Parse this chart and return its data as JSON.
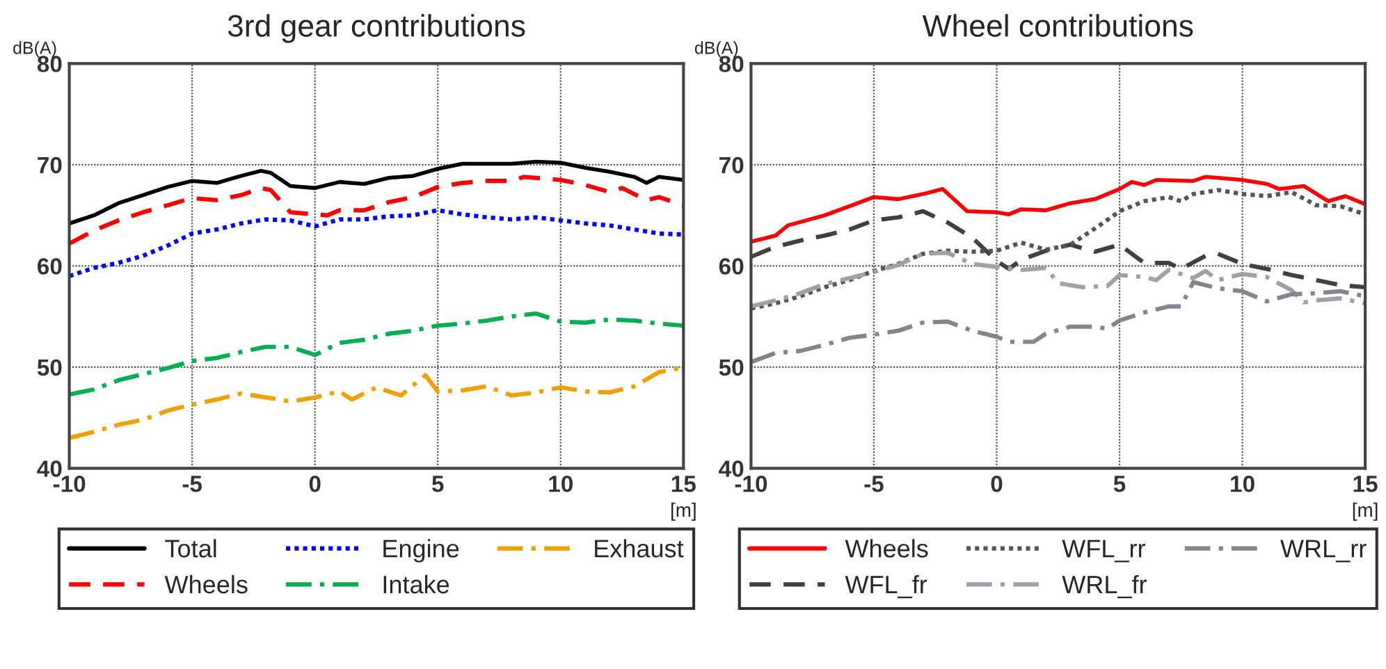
{
  "chart_data": [
    {
      "type": "line",
      "title": "3rd gear contributions",
      "ylabel": "dB(A)",
      "xlabel": "[m]",
      "xlim": [
        -10,
        15
      ],
      "xticks": [
        -10,
        -5,
        0,
        5,
        10,
        15
      ],
      "ylim": [
        40,
        80
      ],
      "yticks": [
        40,
        50,
        60,
        70,
        80
      ],
      "grid": true,
      "legend": "bottom",
      "marker": "none",
      "series": [
        {
          "name": "Total",
          "color": "#000000",
          "line_style": "solid",
          "x": [
            -10,
            -9,
            -8,
            -7,
            -6,
            -5,
            -4,
            -3,
            -2.2,
            -1.8,
            -1,
            0,
            1,
            2,
            3,
            4,
            5,
            6,
            7,
            8,
            9,
            10,
            11,
            12,
            13,
            13.5,
            14,
            15
          ],
          "values": [
            64.2,
            65,
            66.2,
            67,
            67.8,
            68.4,
            68.2,
            68.9,
            69.4,
            69.2,
            67.9,
            67.7,
            68.3,
            68.1,
            68.7,
            68.9,
            69.6,
            70.1,
            70.1,
            70.1,
            70.3,
            70.2,
            69.7,
            69.3,
            68.8,
            68.2,
            68.8,
            68.5
          ]
        },
        {
          "name": "Wheels",
          "color": "#ff0000",
          "line_style": "dashed",
          "x": [
            -10,
            -9,
            -8,
            -7,
            -6,
            -5,
            -4,
            -3,
            -2.2,
            -1.8,
            -1,
            0,
            0.5,
            1,
            2,
            3,
            4,
            5,
            6,
            7,
            8,
            8.5,
            10,
            11,
            12,
            12.5,
            13.5,
            14,
            15
          ],
          "values": [
            62.2,
            63.5,
            64.5,
            65.3,
            66,
            66.7,
            66.5,
            67,
            67.7,
            67.5,
            65.3,
            65.1,
            65,
            65.5,
            65.5,
            66.3,
            66.8,
            67.8,
            68.2,
            68.4,
            68.4,
            68.8,
            68.5,
            68,
            67.3,
            67.7,
            66.5,
            66.8,
            66
          ]
        },
        {
          "name": "Engine",
          "color": "#0000ff",
          "line_style": "dotted",
          "x": [
            -10,
            -9,
            -8,
            -7,
            -6,
            -5,
            -4,
            -3,
            -2,
            -1,
            0,
            1,
            2,
            3,
            4,
            5,
            6,
            7,
            8,
            9,
            10,
            11,
            12,
            13,
            14,
            15
          ],
          "values": [
            59,
            59.8,
            60.3,
            61,
            62,
            63.2,
            63.6,
            64.2,
            64.6,
            64.5,
            63.9,
            64.6,
            64.6,
            64.9,
            65,
            65.5,
            65.1,
            64.8,
            64.6,
            64.8,
            64.5,
            64.2,
            64,
            63.6,
            63.2,
            63.1
          ]
        },
        {
          "name": "Intake",
          "color": "#00b050",
          "line_style": "dashdot",
          "x": [
            -10,
            -9,
            -8,
            -7,
            -6,
            -5,
            -4,
            -3,
            -2,
            -1,
            0,
            1,
            2,
            3,
            4,
            5,
            6,
            7,
            8,
            9,
            10,
            11,
            12,
            13,
            14,
            15
          ],
          "values": [
            47.3,
            47.8,
            48.7,
            49.3,
            49.9,
            50.6,
            50.9,
            51.5,
            52,
            52,
            51.2,
            52.4,
            52.7,
            53.3,
            53.6,
            54.1,
            54.3,
            54.6,
            55,
            55.3,
            54.5,
            54.4,
            54.7,
            54.6,
            54.3,
            54.1
          ]
        },
        {
          "name": "Exhaust",
          "color": "#f0a000",
          "line_style": "dashdot",
          "x": [
            -10,
            -9,
            -8,
            -7,
            -6,
            -5,
            -4,
            -3,
            -2,
            -1,
            0,
            1,
            1.5,
            2.5,
            3.5,
            4.5,
            5,
            6,
            7,
            8,
            9,
            10,
            11,
            12,
            13,
            14,
            15
          ],
          "values": [
            43,
            43.6,
            44.3,
            44.8,
            45.7,
            46.3,
            46.8,
            47.4,
            47,
            46.6,
            47,
            47.6,
            46.8,
            48,
            47.2,
            49.2,
            47.6,
            47.7,
            48.1,
            47.2,
            47.5,
            48,
            47.6,
            47.5,
            48.1,
            49.5,
            50
          ]
        }
      ]
    },
    {
      "type": "line",
      "title": "Wheel contributions",
      "ylabel": "dB(A)",
      "xlabel": "[m]",
      "xlim": [
        -10,
        15
      ],
      "xticks": [
        -10,
        -5,
        0,
        5,
        10,
        15
      ],
      "ylim": [
        40,
        80
      ],
      "yticks": [
        40,
        50,
        60,
        70,
        80
      ],
      "grid": true,
      "legend": "bottom",
      "marker": "none",
      "series": [
        {
          "name": "Wheels",
          "color": "#ff0000",
          "line_style": "solid",
          "x": [
            -10,
            -9,
            -8.5,
            -7,
            -6,
            -5,
            -4,
            -3,
            -2.2,
            -1.2,
            0,
            0.5,
            1,
            2,
            3,
            4,
            5,
            5.5,
            6,
            6.5,
            8,
            8.5,
            10,
            11,
            11.5,
            12.5,
            13.5,
            14.2,
            15
          ],
          "values": [
            62.4,
            63,
            64,
            65,
            65.9,
            66.8,
            66.6,
            67.1,
            67.6,
            65.4,
            65.3,
            65.1,
            65.6,
            65.5,
            66.2,
            66.6,
            67.6,
            68.3,
            68,
            68.5,
            68.4,
            68.8,
            68.5,
            68.1,
            67.6,
            67.9,
            66.4,
            66.9,
            66.1
          ]
        },
        {
          "name": "WFL_fr",
          "color": "#404040",
          "line_style": "dashed",
          "x": [
            -10,
            -9,
            -8,
            -7,
            -6,
            -5,
            -4,
            -3,
            -2,
            -1,
            0,
            0.5,
            1,
            2,
            3,
            4,
            5,
            6,
            7,
            7.5,
            8.5,
            9,
            10,
            11,
            12,
            13,
            14,
            15
          ],
          "values": [
            60.9,
            61.9,
            62.5,
            63,
            63.6,
            64.5,
            64.8,
            65.4,
            64.3,
            62.8,
            60.5,
            59.7,
            60.6,
            61.5,
            62.1,
            61.4,
            62.1,
            60.3,
            60.3,
            59.7,
            61,
            61.2,
            60.2,
            59.7,
            59.1,
            58.6,
            58.1,
            57.9
          ]
        },
        {
          "name": "WFL_rr",
          "color": "#555555",
          "line_style": "dotted",
          "x": [
            -10,
            -9,
            -8,
            -7,
            -6,
            -5,
            -4,
            -3,
            -2,
            -1,
            0,
            1,
            2,
            3,
            4,
            5,
            6,
            7,
            7.5,
            8,
            9,
            10,
            11,
            12,
            13,
            14,
            15
          ],
          "values": [
            55.8,
            56.3,
            57,
            57.9,
            58.6,
            59.5,
            60.2,
            61.2,
            61.5,
            61.4,
            61.5,
            62.3,
            61.6,
            62.1,
            63.7,
            65.4,
            66.4,
            66.8,
            66.4,
            67.1,
            67.5,
            67.1,
            66.9,
            67.3,
            66,
            65.9,
            65.1
          ]
        },
        {
          "name": "WRL_fr",
          "color": "#a0a0a8",
          "line_style": "dashdot",
          "x": [
            -10,
            -9,
            -8,
            -7,
            -6,
            -5,
            -4,
            -3,
            -2,
            -1,
            0,
            1,
            2,
            2.5,
            3.5,
            4.5,
            5,
            6,
            6.5,
            7,
            8,
            8.5,
            9,
            9.5,
            10,
            11,
            12,
            12.5,
            13,
            14,
            15
          ],
          "values": [
            56,
            56.6,
            57.3,
            58.2,
            58.8,
            59.4,
            60.1,
            61.2,
            61.3,
            60.2,
            59.9,
            59.6,
            59.8,
            58.3,
            57.9,
            58,
            59.1,
            58.9,
            58.6,
            59.6,
            58.8,
            59.5,
            58.6,
            58.9,
            59.2,
            58.9,
            57.6,
            56.4,
            56.6,
            56.8,
            56.3
          ]
        },
        {
          "name": "WRL_rr",
          "color": "#84848c",
          "line_style": "dashdot",
          "x": [
            -10,
            -9,
            -8,
            -7,
            -6,
            -5,
            -4,
            -3,
            -2,
            -1,
            0,
            0.5,
            1.5,
            2,
            3,
            4,
            4.5,
            5,
            6,
            7,
            7.5,
            8,
            9,
            10,
            11,
            12,
            13,
            14,
            15
          ],
          "values": [
            50.5,
            51.4,
            51.6,
            52.2,
            52.9,
            53.2,
            53.6,
            54.4,
            54.5,
            53.6,
            53,
            52.5,
            52.5,
            53.3,
            54,
            54,
            53.8,
            54.6,
            55.4,
            56,
            56,
            58.4,
            57.8,
            57.5,
            56.5,
            57.2,
            57.3,
            57.5,
            57
          ]
        }
      ]
    }
  ]
}
